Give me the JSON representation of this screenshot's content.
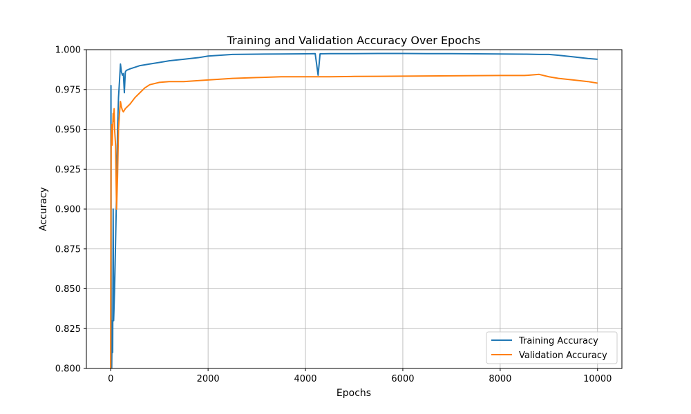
{
  "chart_data": {
    "type": "line",
    "title": "Training and Validation Accuracy Over Epochs",
    "xlabel": "Epochs",
    "ylabel": "Accuracy",
    "xlim": [
      -500,
      10500
    ],
    "ylim": [
      0.8,
      1.0
    ],
    "xticks": [
      0,
      2000,
      4000,
      6000,
      8000,
      10000
    ],
    "xtick_labels": [
      "0",
      "2000",
      "4000",
      "6000",
      "8000",
      "10000"
    ],
    "yticks": [
      0.8,
      0.825,
      0.85,
      0.875,
      0.9,
      0.925,
      0.95,
      0.975,
      1.0
    ],
    "ytick_labels": [
      "0.800",
      "0.825",
      "0.850",
      "0.875",
      "0.900",
      "0.925",
      "0.950",
      "0.975",
      "1.000"
    ],
    "grid": true,
    "legend_position": "bottom-right",
    "series": [
      {
        "name": "Training Accuracy",
        "color": "#1f77b4",
        "x": [
          0,
          5,
          10,
          20,
          30,
          40,
          50,
          60,
          70,
          80,
          100,
          120,
          140,
          160,
          180,
          200,
          220,
          240,
          260,
          280,
          300,
          320,
          400,
          500,
          600,
          800,
          1000,
          1200,
          1500,
          1800,
          2000,
          2500,
          3000,
          3500,
          4000,
          4200,
          4260,
          4300,
          4500,
          5000,
          5500,
          6000,
          6500,
          7000,
          7500,
          8000,
          8500,
          8800,
          9000,
          9200,
          9500,
          9800,
          10000
        ],
        "y": [
          0.8,
          0.9775,
          0.82,
          0.8,
          0.83,
          0.81,
          0.9,
          0.83,
          0.84,
          0.85,
          0.88,
          0.91,
          0.95,
          0.97,
          0.98,
          0.991,
          0.986,
          0.984,
          0.985,
          0.973,
          0.986,
          0.987,
          0.988,
          0.989,
          0.99,
          0.991,
          0.992,
          0.993,
          0.994,
          0.995,
          0.996,
          0.997,
          0.9972,
          0.9973,
          0.9974,
          0.9975,
          0.984,
          0.9974,
          0.9975,
          0.9975,
          0.9976,
          0.9976,
          0.9975,
          0.9975,
          0.9974,
          0.9973,
          0.9972,
          0.997,
          0.997,
          0.9965,
          0.9955,
          0.9945,
          0.994
        ]
      },
      {
        "name": "Validation Accuracy",
        "color": "#ff7f0e",
        "x": [
          0,
          5,
          10,
          20,
          30,
          40,
          50,
          60,
          70,
          80,
          100,
          120,
          140,
          160,
          180,
          200,
          220,
          240,
          260,
          300,
          400,
          500,
          600,
          700,
          800,
          1000,
          1200,
          1500,
          2000,
          2500,
          3000,
          3500,
          4000,
          4500,
          5000,
          5500,
          6000,
          6500,
          7000,
          7500,
          8000,
          8500,
          8800,
          9000,
          9200,
          9500,
          9800,
          10000
        ],
        "y": [
          0.8,
          0.91,
          0.945,
          0.953,
          0.94,
          0.95,
          0.96,
          0.955,
          0.963,
          0.95,
          0.94,
          0.9,
          0.92,
          0.95,
          0.96,
          0.9675,
          0.964,
          0.962,
          0.961,
          0.963,
          0.966,
          0.97,
          0.973,
          0.976,
          0.978,
          0.9795,
          0.98,
          0.98,
          0.981,
          0.982,
          0.9825,
          0.983,
          0.983,
          0.983,
          0.9832,
          0.9833,
          0.9834,
          0.9835,
          0.9836,
          0.9837,
          0.9838,
          0.9838,
          0.9845,
          0.983,
          0.982,
          0.981,
          0.98,
          0.979
        ]
      }
    ]
  }
}
